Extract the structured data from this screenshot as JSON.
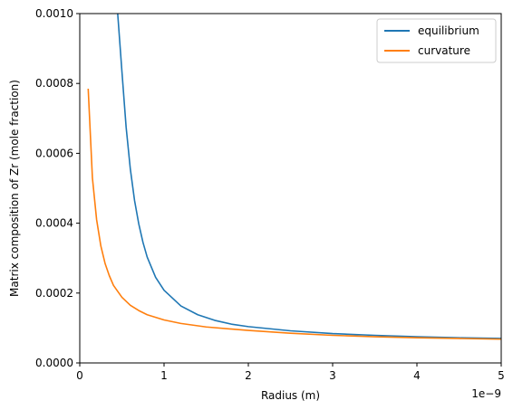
{
  "chart_data": {
    "type": "line",
    "xlabel": "Radius (m)",
    "ylabel": "Matrix composition of Zr (mole fraction)",
    "x_scale_label": "1e−9",
    "xlim": [
      0,
      5e-09
    ],
    "ylim": [
      0,
      0.001
    ],
    "x_ticks": [
      0,
      1e-09,
      2e-09,
      3e-09,
      4e-09,
      5e-09
    ],
    "x_tick_labels": [
      "0",
      "1",
      "2",
      "3",
      "4",
      "5"
    ],
    "y_ticks": [
      0,
      0.0002,
      0.0004,
      0.0006,
      0.0008,
      0.001
    ],
    "y_tick_labels": [
      "0.0000",
      "0.0002",
      "0.0004",
      "0.0006",
      "0.0008",
      "0.0010"
    ],
    "grid": false,
    "legend_position": "top-right",
    "series": [
      {
        "name": "equilibrium",
        "color": "#1f77b4",
        "x": [
          4.5e-10,
          5e-10,
          5.5e-10,
          6e-10,
          6.5e-10,
          7e-10,
          7.5e-10,
          8e-10,
          9e-10,
          1e-09,
          1.2e-09,
          1.4e-09,
          1.6e-09,
          1.8e-09,
          2e-09,
          2.5e-09,
          3e-09,
          3.5e-09,
          4e-09,
          4.5e-09,
          5e-09
        ],
        "y": [
          0.001,
          0.000835,
          0.000675,
          0.000555,
          0.000465,
          0.000398,
          0.000345,
          0.000303,
          0.000245,
          0.000208,
          0.000163,
          0.000138,
          0.000122,
          0.000111,
          0.000104,
          9.2e-05,
          8.4e-05,
          7.9e-05,
          7.5e-05,
          7.2e-05,
          7e-05
        ]
      },
      {
        "name": "curvature",
        "color": "#ff7f0e",
        "x": [
          1e-10,
          1.5e-10,
          2e-10,
          2.5e-10,
          3e-10,
          3.5e-10,
          4e-10,
          5e-10,
          6e-10,
          7e-10,
          8e-10,
          1e-09,
          1.2e-09,
          1.5e-09,
          2e-09,
          2.5e-09,
          3e-09,
          3.5e-09,
          4e-09,
          4.5e-09,
          5e-09
        ],
        "y": [
          0.000785,
          0.00053,
          0.00041,
          0.000335,
          0.000285,
          0.00025,
          0.000222,
          0.000188,
          0.000165,
          0.00015,
          0.000138,
          0.000123,
          0.000113,
          0.000103,
          9.3e-05,
          8.5e-05,
          7.9e-05,
          7.5e-05,
          7.2e-05,
          7e-05,
          6.8e-05
        ]
      }
    ]
  }
}
